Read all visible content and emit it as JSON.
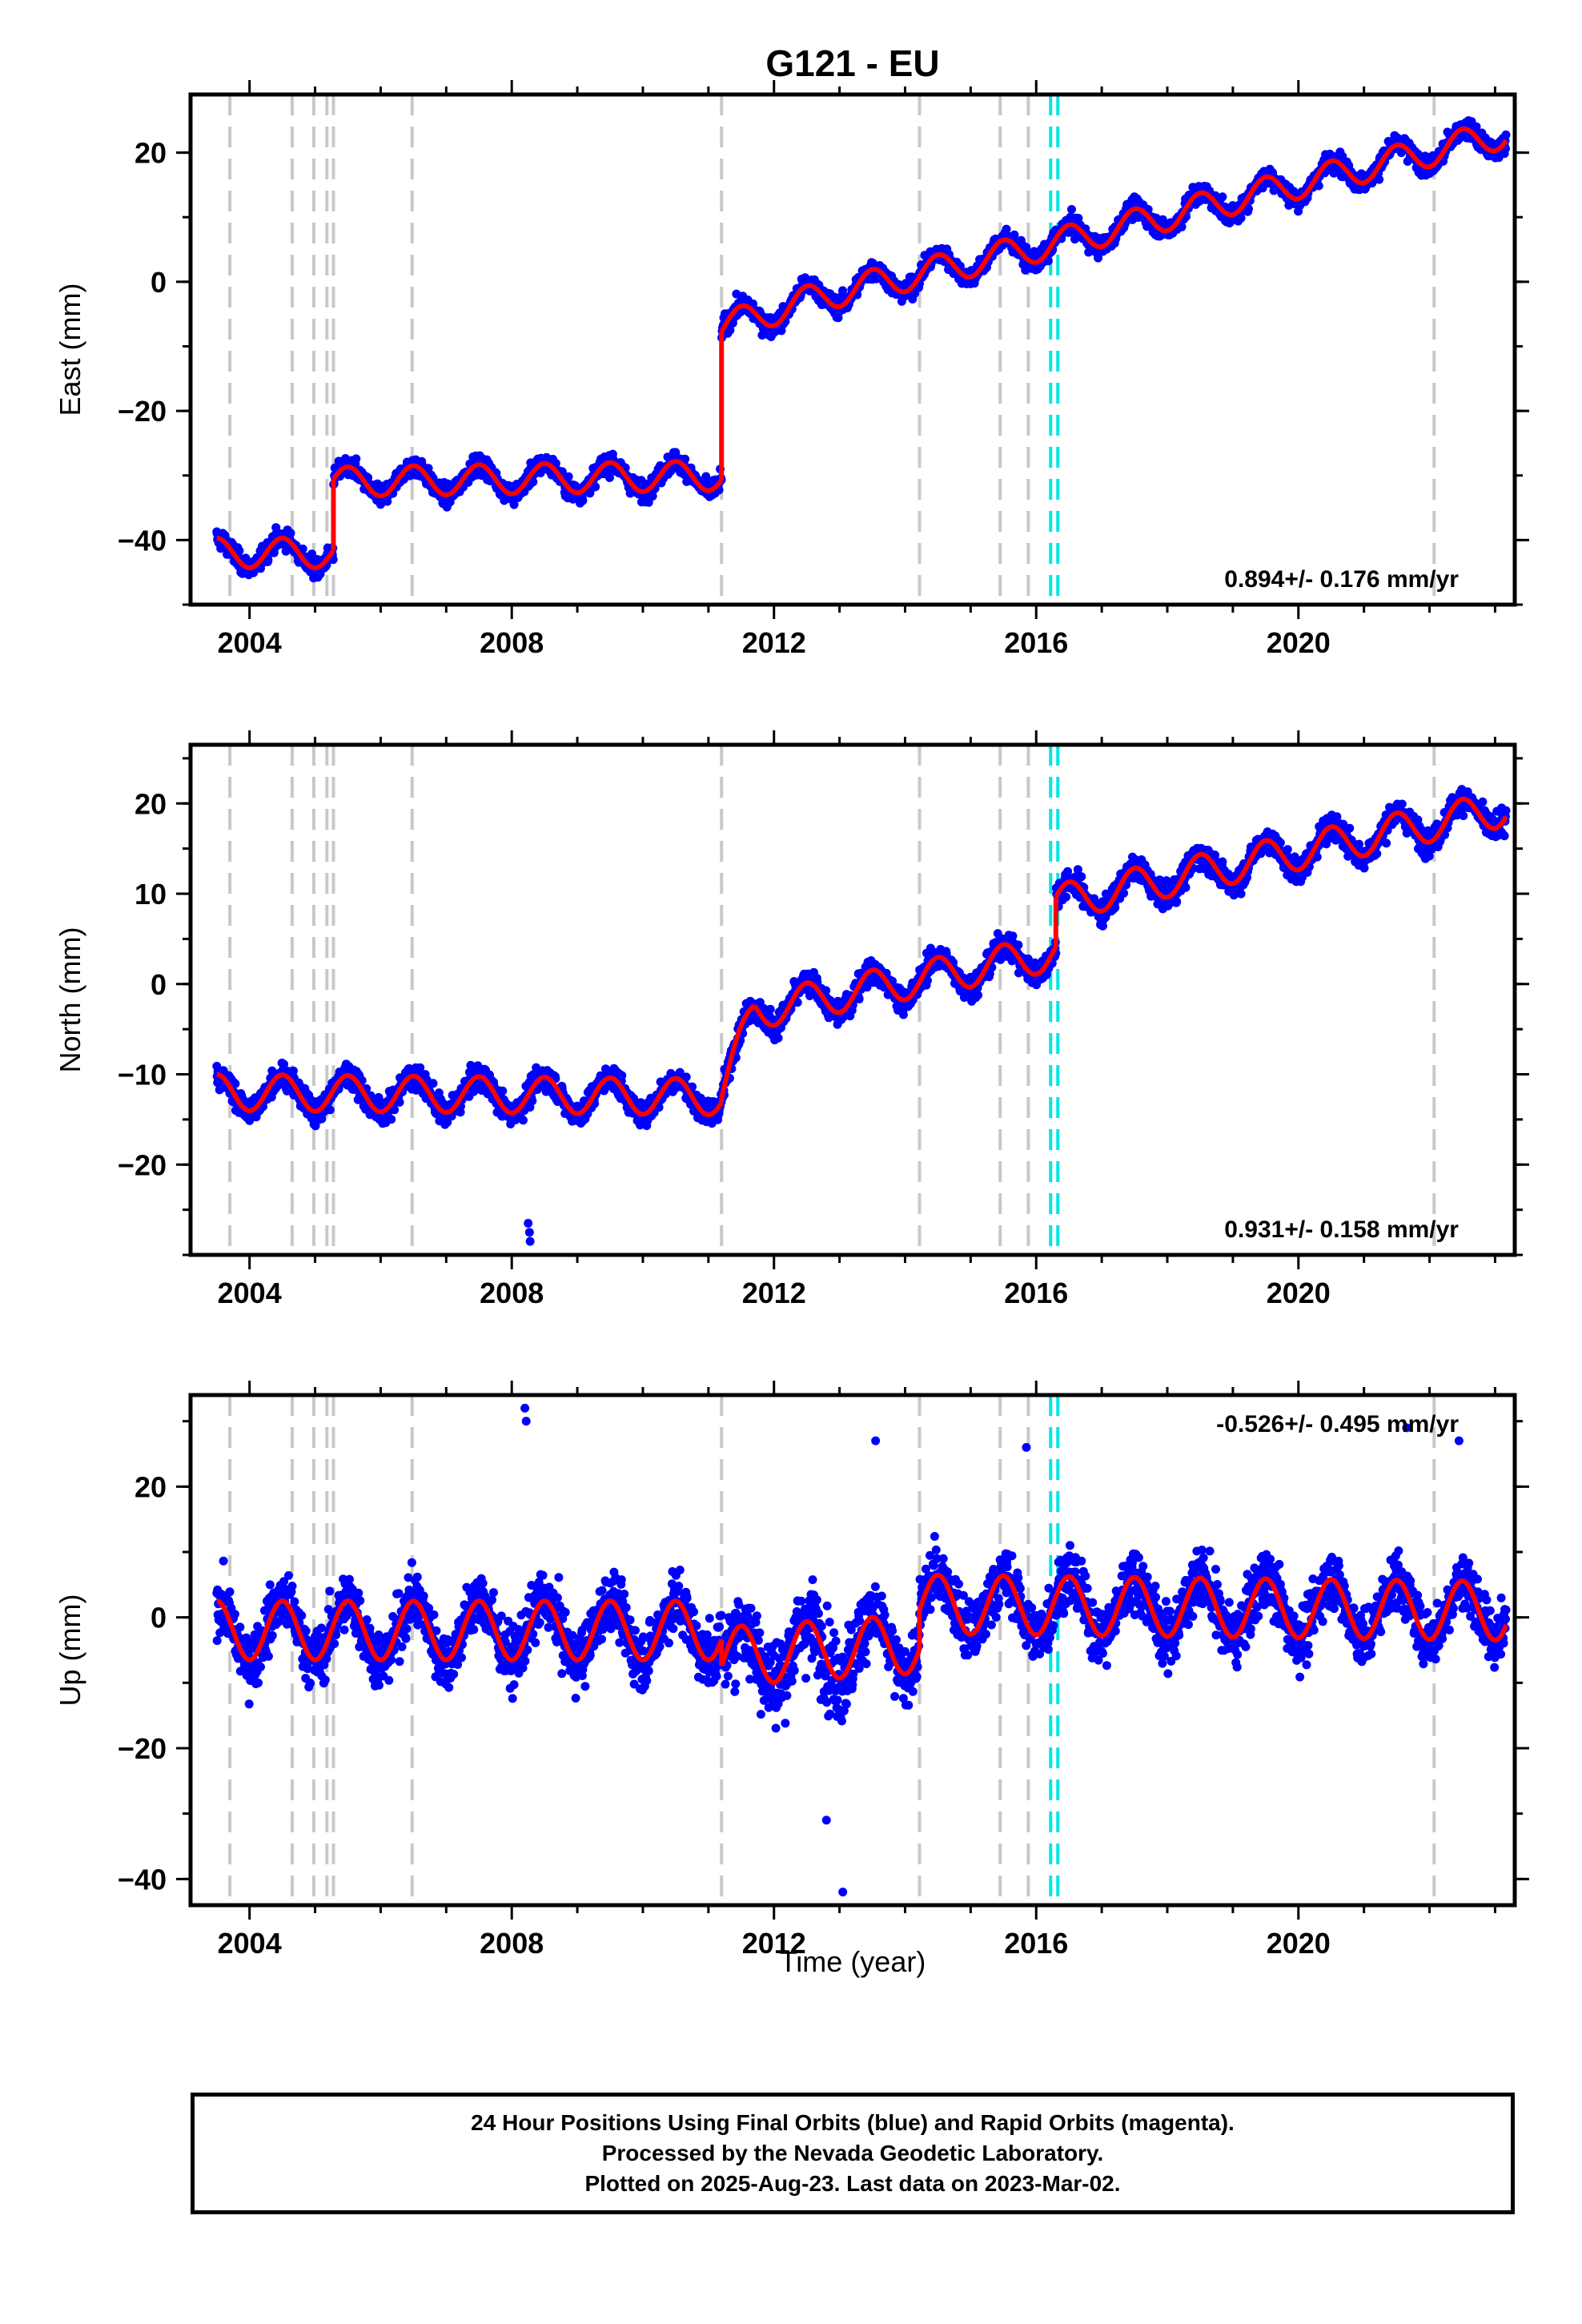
{
  "chart_data": {
    "title": "G121 - EU",
    "type": "scatter",
    "xlabel": "Time (year)",
    "xlim": [
      2003.1,
      2023.3
    ],
    "x_ticks": [
      2004,
      2008,
      2012,
      2016,
      2020
    ],
    "x_tick_labels": [
      "2004",
      "2008",
      "2012",
      "2016",
      "2020"
    ],
    "colors": {
      "final_orbits": "#0000ff",
      "model": "#ff0000",
      "equipment_change": "#c8c8c8",
      "earthquake": "#00e5e5"
    },
    "gray_dashed_lines": [
      2003.7,
      2004.65,
      2004.98,
      2005.18,
      2005.28,
      2006.48,
      2011.2,
      2014.22,
      2015.45,
      2015.88,
      2022.07
    ],
    "cyan_dashed_lines": [
      2016.22,
      2016.33
    ],
    "panels": [
      {
        "name": "east",
        "ylabel": "East (mm)",
        "ylim": [
          -50,
          29
        ],
        "y_ticks": [
          -40,
          -20,
          0,
          20
        ],
        "y_tick_labels": [
          "−40",
          "−20",
          "0",
          "20"
        ],
        "rate": "0.894+/- 0.176 mm/yr",
        "rate_position": "bottom-right",
        "data_start": 2003.5,
        "data_end": 2023.17,
        "trend_segments": [
          {
            "x0": 2003.5,
            "y0": -42,
            "x1": 2005.28,
            "y1": -42
          },
          {
            "x0": 2005.28,
            "y0": -31,
            "x1": 2011.2,
            "y1": -30
          },
          {
            "x0": 2011.2,
            "y0": -7,
            "x1": 2012.8,
            "y1": -2
          },
          {
            "x0": 2012.8,
            "y0": -2,
            "x1": 2016.3,
            "y1": 6
          },
          {
            "x0": 2016.3,
            "y0": 6,
            "x1": 2023.17,
            "y1": 23
          }
        ],
        "annual_amplitude": 2.3,
        "scatter_noise": 1.4,
        "outliers": []
      },
      {
        "name": "north",
        "ylabel": "North (mm)",
        "ylim": [
          -30,
          26.5
        ],
        "y_ticks": [
          -20,
          -10,
          0,
          10,
          20
        ],
        "y_tick_labels": [
          "−20",
          "−10",
          "0",
          "10",
          "20"
        ],
        "rate": "0.931+/- 0.158 mm/yr",
        "rate_position": "bottom-right",
        "data_start": 2003.5,
        "data_end": 2023.17,
        "trend_segments": [
          {
            "x0": 2003.5,
            "y0": -12,
            "x1": 2011.2,
            "y1": -12.5
          },
          {
            "x0": 2011.2,
            "y0": -12,
            "x1": 2011.7,
            "y1": -3
          },
          {
            "x0": 2011.7,
            "y0": -3,
            "x1": 2016.3,
            "y1": 3.5
          },
          {
            "x0": 2016.3,
            "y0": 9,
            "x1": 2023.17,
            "y1": 19.5
          }
        ],
        "annual_amplitude": 2.0,
        "scatter_noise": 1.3,
        "outliers": [
          [
            2008.25,
            -26.5
          ],
          [
            2008.27,
            -27.5
          ],
          [
            2008.28,
            -28.5
          ]
        ]
      },
      {
        "name": "up",
        "ylabel": "Up (mm)",
        "ylim": [
          -44,
          34
        ],
        "y_ticks": [
          -40,
          -20,
          0,
          20
        ],
        "y_tick_labels": [
          "−40",
          "−20",
          "0",
          "20"
        ],
        "rate": "-0.526+/- 0.495 mm/yr",
        "rate_position": "top-right",
        "data_start": 2003.5,
        "data_end": 2023.17,
        "trend_segments": [
          {
            "x0": 2003.5,
            "y0": -2,
            "x1": 2011.2,
            "y1": -2
          },
          {
            "x0": 2011.2,
            "y0": -6,
            "x1": 2014.22,
            "y1": -4
          },
          {
            "x0": 2014.22,
            "y0": 2,
            "x1": 2023.17,
            "y1": 1
          }
        ],
        "annual_amplitude": 4.5,
        "scatter_noise": 4.2,
        "outliers": [
          [
            2008.2,
            32
          ],
          [
            2008.22,
            30
          ],
          [
            2013.05,
            -42
          ],
          [
            2012.8,
            -31
          ],
          [
            2021.65,
            29
          ],
          [
            2022.45,
            27
          ],
          [
            2015.85,
            26
          ],
          [
            2013.55,
            27
          ]
        ]
      }
    ]
  },
  "caption": {
    "line1": "24 Hour Positions Using Final Orbits (blue) and Rapid Orbits (magenta).",
    "line2": "Processed by the Nevada Geodetic Laboratory.",
    "line3": "Plotted on 2025-Aug-23. Last data on 2023-Mar-02."
  }
}
